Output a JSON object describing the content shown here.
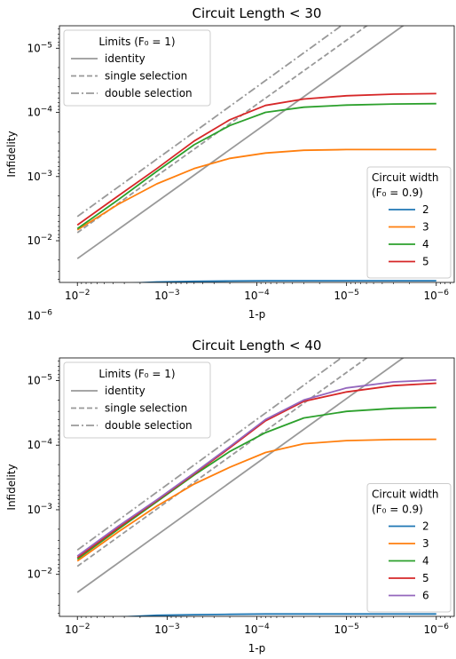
{
  "chart_data": [
    {
      "type": "line",
      "title": "Circuit Length < 30",
      "xlabel": "1-p",
      "ylabel": "Infidelity",
      "x_scale": "log",
      "x_axis_direction": "decreasing",
      "x_ticks": [
        {
          "value": 0.01,
          "base": "10",
          "exp": "−2"
        },
        {
          "value": 0.001,
          "base": "10",
          "exp": "−3"
        },
        {
          "value": 0.0001,
          "base": "10",
          "exp": "−4"
        },
        {
          "value": 1e-05,
          "base": "10",
          "exp": "−5"
        },
        {
          "value": 1e-06,
          "base": "10",
          "exp": "−6"
        }
      ],
      "y_scale": "log",
      "y_axis_direction": "decreasing",
      "y_ticks": [
        {
          "value": 1e-06,
          "base": "10",
          "exp": "−6"
        },
        {
          "value": 1e-05,
          "base": "10",
          "exp": "−5"
        },
        {
          "value": 0.0001,
          "base": "10",
          "exp": "−4"
        },
        {
          "value": 0.001,
          "base": "10",
          "exp": "−3"
        },
        {
          "value": 0.01,
          "base": "10",
          "exp": "−2"
        }
      ],
      "limits_legend": {
        "title": "Limits (F₀ = 1)",
        "entries": [
          {
            "label": "identity",
            "style": "solid",
            "color": "#999999"
          },
          {
            "label": "single selection",
            "style": "dashed",
            "color": "#999999"
          },
          {
            "label": "double selection",
            "style": "dashdot",
            "color": "#999999"
          }
        ]
      },
      "limit_lines": [
        {
          "label": "identity",
          "x": [
            0.01,
            1e-06
          ],
          "y": [
            0.019,
            1.9e-06
          ]
        },
        {
          "label": "single selection",
          "x": [
            0.01,
            1e-06
          ],
          "y": [
            0.0075,
            7.5e-07
          ]
        },
        {
          "label": "double selection",
          "x": [
            0.01,
            1e-06
          ],
          "y": [
            0.0042,
            3.8e-07
          ]
        }
      ],
      "width_legend": {
        "title_line1": "Circuit width",
        "title_line2": "(F₀ = 0.9)"
      },
      "series": [
        {
          "name": "2",
          "color": "#1f77b4",
          "x": [
            0.01,
            0.0035,
            0.0013,
            0.0005,
            0.0002,
            8e-05,
            3e-05,
            1e-05,
            3e-06,
            1e-06
          ],
          "y": [
            0.057,
            0.047,
            0.044,
            0.043,
            0.0425,
            0.042,
            0.042,
            0.042,
            0.042,
            0.042
          ]
        },
        {
          "name": "3",
          "color": "#ff7f0e",
          "x": [
            0.01,
            0.0035,
            0.0013,
            0.0005,
            0.0002,
            8e-05,
            3e-05,
            1e-05,
            3e-06,
            1e-06
          ],
          "y": [
            0.0068,
            0.0027,
            0.0013,
            0.00075,
            0.00052,
            0.00043,
            0.00039,
            0.00038,
            0.00038,
            0.00038
          ]
        },
        {
          "name": "4",
          "color": "#2ca02c",
          "x": [
            0.01,
            0.0035,
            0.0013,
            0.0005,
            0.0002,
            8e-05,
            3e-05,
            1e-05,
            3e-06,
            1e-06
          ],
          "y": [
            0.0065,
            0.0023,
            0.00083,
            0.00032,
            0.00016,
            0.0001,
            8.3e-05,
            7.7e-05,
            7.4e-05,
            7.3e-05
          ]
        },
        {
          "name": "5",
          "color": "#d62728",
          "x": [
            0.01,
            0.0035,
            0.0013,
            0.0005,
            0.0002,
            8e-05,
            3e-05,
            1e-05,
            3e-06,
            1e-06
          ],
          "y": [
            0.0057,
            0.002,
            0.00075,
            0.00028,
            0.00013,
            7.8e-05,
            6.2e-05,
            5.5e-05,
            5.2e-05,
            5.1e-05
          ]
        }
      ]
    },
    {
      "type": "line",
      "title": "Circuit Length < 40",
      "xlabel": "1-p",
      "ylabel": "Infidelity",
      "x_scale": "log",
      "x_axis_direction": "decreasing",
      "x_ticks": [
        {
          "value": 0.01,
          "base": "10",
          "exp": "−2"
        },
        {
          "value": 0.001,
          "base": "10",
          "exp": "−3"
        },
        {
          "value": 0.0001,
          "base": "10",
          "exp": "−4"
        },
        {
          "value": 1e-05,
          "base": "10",
          "exp": "−5"
        },
        {
          "value": 1e-06,
          "base": "10",
          "exp": "−6"
        }
      ],
      "y_scale": "log",
      "y_axis_direction": "decreasing",
      "y_ticks": [
        {
          "value": 1e-06,
          "base": "10",
          "exp": "−6"
        },
        {
          "value": 1e-05,
          "base": "10",
          "exp": "−5"
        },
        {
          "value": 0.0001,
          "base": "10",
          "exp": "−4"
        },
        {
          "value": 0.001,
          "base": "10",
          "exp": "−3"
        },
        {
          "value": 0.01,
          "base": "10",
          "exp": "−2"
        }
      ],
      "limits_legend": {
        "title": "Limits (F₀ = 1)",
        "entries": [
          {
            "label": "identity",
            "style": "solid",
            "color": "#999999"
          },
          {
            "label": "single selection",
            "style": "dashed",
            "color": "#999999"
          },
          {
            "label": "double selection",
            "style": "dashdot",
            "color": "#999999"
          }
        ]
      },
      "limit_lines": [
        {
          "label": "identity",
          "x": [
            0.01,
            1e-06
          ],
          "y": [
            0.019,
            1.9e-06
          ]
        },
        {
          "label": "single selection",
          "x": [
            0.01,
            1e-06
          ],
          "y": [
            0.0075,
            7.5e-07
          ]
        },
        {
          "label": "double selection",
          "x": [
            0.01,
            1e-06
          ],
          "y": [
            0.0042,
            3.8e-07
          ]
        }
      ],
      "width_legend": {
        "title_line1": "Circuit width",
        "title_line2": "(F₀ = 0.9)"
      },
      "series": [
        {
          "name": "2",
          "color": "#1f77b4",
          "x": [
            0.01,
            0.0035,
            0.0013,
            0.0005,
            0.0002,
            8e-05,
            3e-05,
            1e-05,
            3e-06,
            1e-06
          ],
          "y": [
            0.055,
            0.046,
            0.043,
            0.042,
            0.0415,
            0.041,
            0.041,
            0.041,
            0.041,
            0.041
          ]
        },
        {
          "name": "3",
          "color": "#ff7f0e",
          "x": [
            0.01,
            0.0035,
            0.0013,
            0.0005,
            0.0002,
            8e-05,
            3e-05,
            1e-05,
            3e-06,
            1e-06
          ],
          "y": [
            0.0062,
            0.0022,
            0.00088,
            0.0004,
            0.00022,
            0.00013,
            9.5e-05,
            8.5e-05,
            8.2e-05,
            8.1e-05
          ]
        },
        {
          "name": "4",
          "color": "#2ca02c",
          "x": [
            0.01,
            0.0035,
            0.0013,
            0.0005,
            0.0002,
            8e-05,
            3e-05,
            1e-05,
            3e-06,
            1e-06
          ],
          "y": [
            0.0058,
            0.002,
            0.00075,
            0.00029,
            0.000125,
            6.4e-05,
            3.8e-05,
            3e-05,
            2.7e-05,
            2.6e-05
          ]
        },
        {
          "name": "5",
          "color": "#d62728",
          "x": [
            0.01,
            0.0035,
            0.0013,
            0.0005,
            0.0002,
            8e-05,
            3e-05,
            1e-05,
            3e-06,
            1e-06
          ],
          "y": [
            0.0055,
            0.0019,
            0.00072,
            0.00028,
            0.00011,
            4.2e-05,
            2.1e-05,
            1.5e-05,
            1.2e-05,
            1.1e-05
          ]
        },
        {
          "name": "6",
          "color": "#9467bd",
          "x": [
            0.01,
            0.0035,
            0.0013,
            0.0005,
            0.0002,
            8e-05,
            3e-05,
            1e-05,
            3e-06,
            1e-06
          ],
          "y": [
            0.0052,
            0.0018,
            0.0007,
            0.00027,
            0.000105,
            4e-05,
            2e-05,
            1.3e-05,
            1.05e-05,
            9.8e-06
          ]
        }
      ]
    }
  ]
}
